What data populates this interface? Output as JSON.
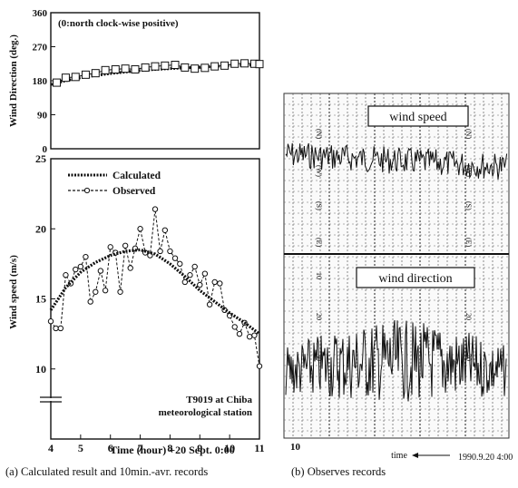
{
  "figure": {
    "caption_a": "(a) Calculated result and 10min.-avr. records",
    "caption_b": "(b) Observes records"
  },
  "chart_data": [
    {
      "type": "line",
      "panel": "a-top",
      "ylabel": "Wind Direction (deg.)",
      "note": "(0:north clock-wise positive)",
      "ylim": [
        0,
        360
      ],
      "yticks": [
        "0",
        "90",
        "180",
        "270",
        "360"
      ],
      "xlim": [
        4,
        11
      ],
      "series": [
        {
          "name": "",
          "style": "calculated",
          "x": [
            4.0,
            4.5,
            5.0,
            5.5,
            6.0,
            6.5,
            7.0,
            7.5,
            8.0,
            8.5,
            9.0,
            9.5,
            10.0,
            10.5,
            11.0
          ],
          "values": [
            170,
            180,
            188,
            194,
            199,
            203,
            207,
            210,
            212,
            214,
            216,
            218,
            220,
            221,
            222
          ]
        },
        {
          "name": "",
          "style": "observed",
          "x": [
            4.2,
            4.5,
            4.83,
            5.17,
            5.5,
            5.83,
            6.17,
            6.5,
            6.83,
            7.17,
            7.5,
            7.83,
            8.17,
            8.5,
            8.83,
            9.17,
            9.5,
            9.83,
            10.17,
            10.5,
            10.83,
            11.0
          ],
          "values": [
            175,
            188,
            190,
            196,
            200,
            208,
            210,
            212,
            210,
            215,
            218,
            220,
            222,
            215,
            212,
            214,
            218,
            220,
            225,
            226,
            225,
            224
          ]
        }
      ]
    },
    {
      "type": "line",
      "panel": "a-bottom",
      "xlabel": "Time (hour) +20 Sept. 0:00",
      "ylabel": "Wind speed (m/s)",
      "ylim": [
        5,
        25
      ],
      "xlim": [
        4,
        11
      ],
      "yticks": [
        "10",
        "15",
        "20",
        "25"
      ],
      "xticks": [
        "4",
        "5",
        "6",
        "7",
        "8",
        "9",
        "10",
        "11"
      ],
      "annotation": [
        "T9019 at Chiba",
        "meteorological station"
      ],
      "series": [
        {
          "name": "Calculated",
          "x": [
            4.0,
            4.5,
            5.0,
            5.5,
            6.0,
            6.5,
            7.0,
            7.5,
            8.0,
            8.5,
            9.0,
            9.5,
            10.0,
            10.5,
            11.0
          ],
          "values": [
            14.2,
            15.8,
            16.9,
            17.6,
            18.1,
            18.4,
            18.5,
            18.2,
            17.5,
            16.6,
            15.6,
            14.8,
            14.0,
            13.3,
            12.5
          ]
        },
        {
          "name": "Observed",
          "x": [
            4.0,
            4.17,
            4.33,
            4.5,
            4.67,
            4.83,
            5.0,
            5.17,
            5.33,
            5.5,
            5.67,
            5.83,
            6.0,
            6.17,
            6.33,
            6.5,
            6.67,
            6.83,
            7.0,
            7.17,
            7.33,
            7.5,
            7.67,
            7.83,
            8.0,
            8.17,
            8.33,
            8.5,
            8.67,
            8.83,
            9.0,
            9.17,
            9.33,
            9.5,
            9.67,
            9.83,
            10.0,
            10.17,
            10.33,
            10.5,
            10.67,
            10.83,
            11.0
          ],
          "values": [
            13.4,
            12.9,
            12.9,
            16.7,
            16.1,
            17.1,
            17.3,
            18.0,
            14.8,
            15.5,
            17.0,
            15.6,
            18.7,
            18.3,
            15.5,
            18.8,
            17.2,
            18.6,
            20.0,
            18.3,
            18.1,
            21.4,
            18.4,
            19.9,
            18.4,
            17.9,
            17.5,
            16.2,
            16.7,
            17.3,
            16.0,
            16.8,
            14.6,
            16.2,
            16.1,
            14.2,
            13.8,
            13.0,
            12.5,
            13.3,
            12.3,
            12.4,
            10.2
          ]
        }
      ]
    }
  ],
  "panel_b": {
    "label_speed": "wind speed",
    "label_direction": "wind direction",
    "time_label": "time",
    "date_label": "1990.9.20 4:00",
    "tick_left": "10",
    "tick_row1": [
      "(N)",
      "(W)",
      "(S)",
      "(E)",
      "(N)"
    ],
    "tick_row2": [
      "(N)",
      "(W)",
      "(S)",
      "(E)",
      "(N)"
    ],
    "scale_marks": [
      "10",
      "20",
      "30"
    ]
  }
}
